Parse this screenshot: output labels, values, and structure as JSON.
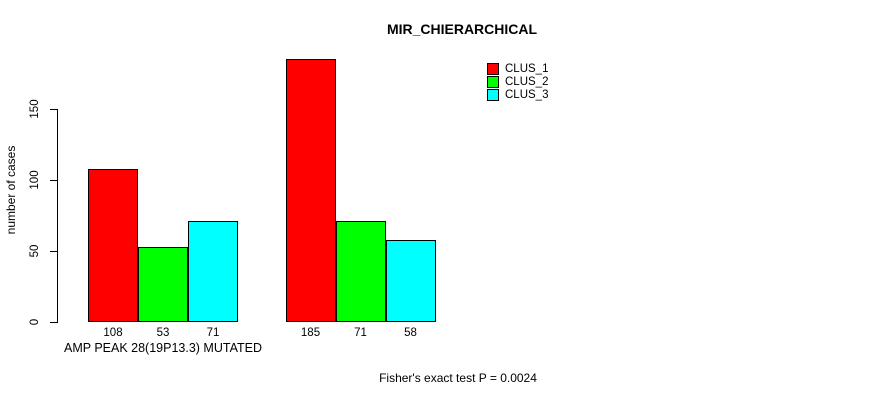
{
  "title": "MIR_CHIERARCHICAL",
  "footnote": "Fisher's exact test P = 0.0024",
  "chart_data": {
    "type": "bar",
    "title": "MIR_CHIERARCHICAL",
    "ylabel": "number of cases",
    "xlabel": "",
    "group_labels": [
      "AMP PEAK 28(19P13.3) MUTATED",
      ""
    ],
    "group_label_shown": "AMP PEAK 28(19P13.3) MUTATED",
    "series": [
      {
        "name": "CLUS_1",
        "color": "#ff0000",
        "values": [
          108,
          185
        ]
      },
      {
        "name": "CLUS_2",
        "color": "#00ff00",
        "values": [
          53,
          71
        ]
      },
      {
        "name": "CLUS_3",
        "color": "#00ffff",
        "values": [
          71,
          58
        ]
      }
    ],
    "bar_value_labels": [
      [
        108,
        53,
        71
      ],
      [
        185,
        71,
        58
      ]
    ],
    "yticks": [
      0,
      50,
      100,
      150
    ],
    "ylim": [
      0,
      185
    ],
    "grid": false,
    "legend_position": "top-right",
    "background": "#ffffff",
    "axis_color": "#000000"
  }
}
